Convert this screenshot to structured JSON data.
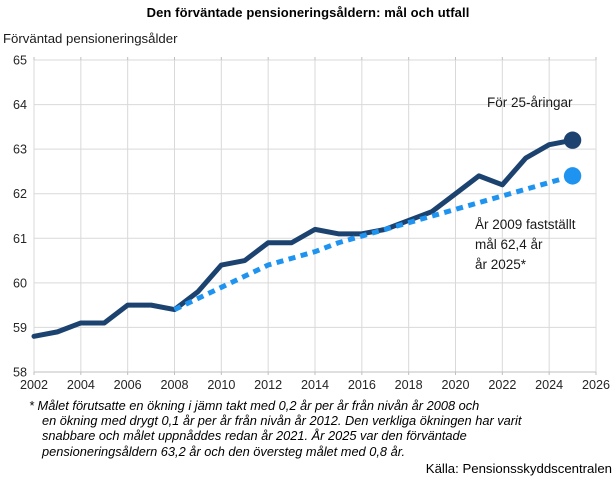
{
  "title": "Den förväntade pensioneringsåldern: mål och utfall",
  "y_axis_title": "Förväntad pensioneringsålder",
  "annotations": {
    "series_label": "För 25-åringar",
    "target_note_lines": [
      "År 2009 fastställt",
      "mål 62,4 år",
      "år 2025*"
    ]
  },
  "footnote_lines": [
    "* Målet förutsatte en ökning i jämn takt med 0,2 år per år från nivån år 2008 och",
    "en ökning med drygt 0,1 år per år från nivån år 2012. Den verkliga ökningen har varit",
    "snabbare och målet uppnåddes redan år 2021. År 2025 var den förväntade",
    "pensioneringsåldern 63,2 år och den översteg målet med 0,8 år."
  ],
  "source": "Källa: Pensionsskyddscentralen",
  "colors": {
    "line_outcome": "#1c4370",
    "line_target": "#1e94f0",
    "gridline": "#d9d9d9",
    "axis_line": "#bfbfbf",
    "tick_text": "#262626"
  },
  "chart_data": {
    "type": "line",
    "title": "Den förväntade pensioneringsåldern: mål och utfall",
    "ylabel": "Förväntad pensioneringsålder",
    "x_range": [
      2002,
      2026
    ],
    "y_range": [
      58,
      65
    ],
    "x_ticks": [
      2002,
      2004,
      2006,
      2008,
      2010,
      2012,
      2014,
      2016,
      2018,
      2020,
      2022,
      2024,
      2026
    ],
    "y_ticks": [
      58,
      59,
      60,
      61,
      62,
      63,
      64,
      65
    ],
    "grid": true,
    "legend": "none",
    "series": [
      {
        "name": "Utfall (för 25-åringar)",
        "style": "solid",
        "color": "#1c4370",
        "start_year": 2002,
        "values": [
          58.8,
          58.9,
          59.1,
          59.1,
          59.5,
          59.5,
          59.4,
          59.8,
          60.4,
          60.5,
          60.9,
          60.9,
          61.2,
          61.1,
          61.1,
          61.2,
          61.4,
          61.6,
          62.0,
          62.4,
          62.2,
          62.8,
          63.1,
          63.2
        ],
        "end_dot": true,
        "end_value": 63.2
      },
      {
        "name": "Mål (fastställt år 2009)",
        "style": "dashed",
        "color": "#1e94f0",
        "start_year": 2008,
        "values": [
          59.4,
          59.65,
          59.9,
          60.15,
          60.4,
          60.55,
          60.7,
          60.9,
          61.05,
          61.2,
          61.35,
          61.5,
          61.65,
          61.8,
          61.95,
          62.1,
          62.25,
          62.4
        ],
        "end_dot": true,
        "end_value": 62.4
      }
    ]
  }
}
